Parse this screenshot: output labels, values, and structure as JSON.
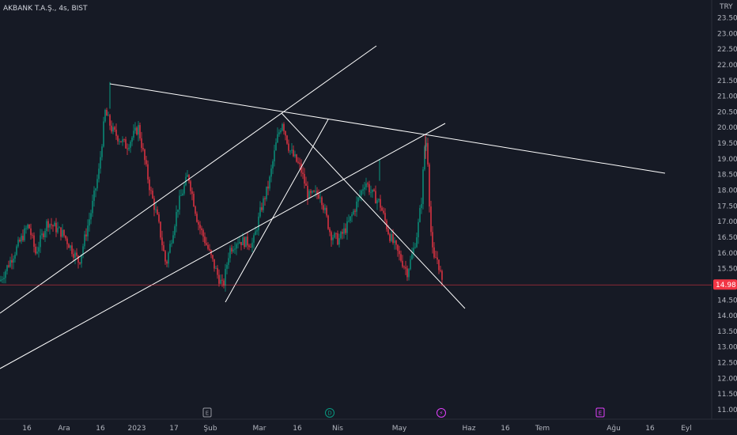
{
  "header": {
    "symbol_title": "AKBANK T.A.Ş., 4s, BIST",
    "currency": "TRY"
  },
  "last_price": {
    "label": "14.98",
    "value": 14.98,
    "color": "#f23645"
  },
  "colors": {
    "up": "#089981",
    "down": "#f23645",
    "background": "#161a25",
    "trendline": "#ffffff"
  },
  "events": [
    {
      "glyph": "E",
      "x_label_ref": "Şub",
      "color": "#9598a1"
    },
    {
      "glyph": "D",
      "x_label_ref": "Nis",
      "color": "#089981"
    },
    {
      "glyph": "⚡",
      "x_label_ref": "May",
      "color": "#e040fb"
    },
    {
      "glyph": "E",
      "x_label_ref": "Ağu",
      "color": "#e040fb"
    }
  ],
  "chart_data": {
    "type": "candlestick",
    "title": "AKBANK T.A.Ş., 4s, BIST",
    "y_unit": "TRY",
    "ylim": [
      10.85,
      23.85
    ],
    "yticks": [
      "11.00",
      "11.50",
      "12.00",
      "12.50",
      "13.00",
      "13.50",
      "14.00",
      "14.50",
      "15.00",
      "15.50",
      "16.00",
      "16.50",
      "17.00",
      "17.50",
      "18.00",
      "18.50",
      "19.00",
      "19.50",
      "20.00",
      "20.50",
      "21.00",
      "21.50",
      "22.00",
      "22.50",
      "23.00",
      "23.50"
    ],
    "x_labels": [
      "16",
      "Ara",
      "16",
      "2023",
      "17",
      "Şub",
      "Mar",
      "16",
      "Nis",
      "May",
      "Haz",
      "16",
      "Tem",
      "Ağu",
      "16",
      "Eyl"
    ],
    "grid": false,
    "legend": "none",
    "price_path_keypoints": [
      [
        "16 Kas",
        15.1
      ],
      [
        "16",
        15.6
      ],
      [
        "Ara",
        16.9
      ],
      [
        "Ara+",
        16.0
      ],
      [
        "16 Ara",
        20.5
      ],
      [
        "16 Ara+",
        19.9
      ],
      [
        "2023",
        19.4
      ],
      [
        "2023+",
        17.0
      ],
      [
        "17 Oca",
        15.6
      ],
      [
        "17 Oca+",
        18.5
      ],
      [
        "Şub",
        15.3
      ],
      [
        "Şub+",
        16.2
      ],
      [
        "Mar",
        17.4
      ],
      [
        "Mar+",
        20.2
      ],
      [
        "16 Mar",
        19.3
      ],
      [
        "16 Mar+",
        17.8
      ],
      [
        "Nis",
        16.6
      ],
      [
        "Nis+",
        18.3
      ],
      [
        "Nis++",
        17.6
      ],
      [
        "May-",
        15.4
      ],
      [
        "May",
        16.7
      ],
      [
        "May+",
        19.6
      ],
      [
        "May++",
        15.5
      ],
      [
        "last",
        14.98
      ]
    ],
    "trendlines": [
      {
        "from": [
          "15 Kas",
          14.15
        ],
        "to": [
          "10 May",
          20.1
        ]
      },
      {
        "from": [
          "13 Kas",
          12.7
        ],
        "to": [
          "5 May",
          20.05
        ]
      },
      {
        "from": [
          "16 Ara",
          21.4
        ],
        "to": [
          "20 Ağu",
          18.55
        ]
      },
      {
        "from": [
          "9 Mar",
          20.5
        ],
        "to": [
          "22 May",
          14.35
        ]
      },
      {
        "from": [
          "3 Şub",
          14.5
        ],
        "to": [
          "22 Mar",
          20.25
        ]
      }
    ],
    "last": 14.98
  }
}
